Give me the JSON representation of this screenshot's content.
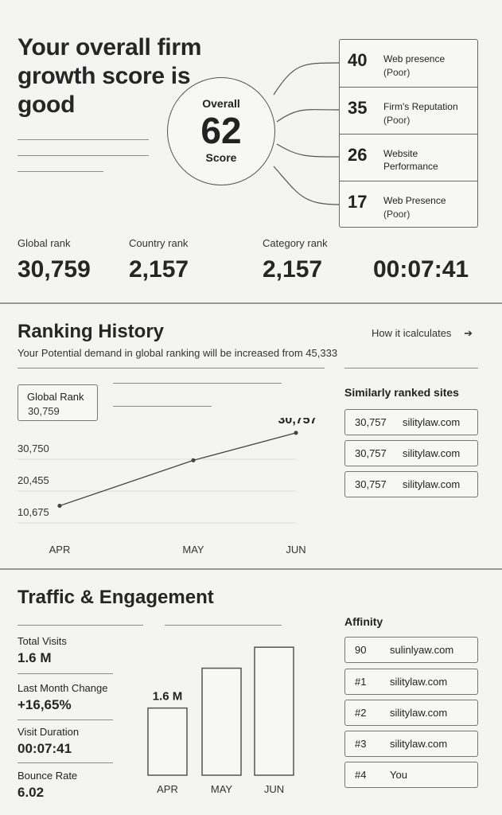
{
  "hero": {
    "title": "Your overall firm growth score is good",
    "score_label": "Overall",
    "score_value": "62",
    "score_sub": "Score",
    "metrics": [
      {
        "value": "40",
        "label": "Web presence",
        "status": "(Poor)"
      },
      {
        "value": "35",
        "label": "Firm's Reputation",
        "status": "(Poor)"
      },
      {
        "value": "26",
        "label": "Website Performance",
        "status": ""
      },
      {
        "value": "17",
        "label": "Web Presence",
        "status": "(Poor)"
      }
    ]
  },
  "ranks": {
    "global_label": "Global rank",
    "global_value": "30,759",
    "country_label": "Country rank",
    "country_value": "2,157",
    "category_label": "Category rank",
    "category_value": "2,157",
    "time_value": "00:07:41"
  },
  "ranking_history": {
    "title": "Ranking History",
    "how_link": "How it icalculates",
    "arrow_icon": "arrow-right-icon",
    "subtitle": "Your Potential demand in global ranking will be increased from 45,333",
    "card_title": "Global Rank",
    "card_value": "30,759",
    "similar_title": "Similarly ranked sites",
    "similar_sites": [
      {
        "rank": "30,757",
        "site": "silitylaw.com"
      },
      {
        "rank": "30,757",
        "site": "silitylaw.com"
      },
      {
        "rank": "30,757",
        "site": "silitylaw.com"
      }
    ]
  },
  "traffic": {
    "title": "Traffic & Engagement",
    "stats": [
      {
        "label": "Total Visits",
        "value": "1.6 M"
      },
      {
        "label": "Last Month Change",
        "value": "+16,65%"
      },
      {
        "label": "Visit Duration",
        "value": "00:07:41"
      },
      {
        "label": "Bounce Rate",
        "value": "6.02"
      }
    ],
    "affinity_title": "Affinity",
    "affinity": [
      {
        "rank": "90",
        "site": "sulinlyaw.com"
      },
      {
        "rank": "#1",
        "site": "silitylaw.com"
      },
      {
        "rank": "#2",
        "site": "silitylaw.com"
      },
      {
        "rank": "#3",
        "site": "silitylaw.com"
      },
      {
        "rank": "#4",
        "site": "You"
      }
    ]
  },
  "chart_data": [
    {
      "type": "line",
      "x": [
        "APR",
        "MAY",
        "JUN"
      ],
      "series": [
        {
          "values": [
            7500,
            22000,
            30757
          ]
        }
      ],
      "y_ticks": [
        "30,750",
        "20,455",
        "10,675"
      ],
      "point_label": "30,757",
      "ylim": [
        0,
        33000
      ],
      "grid": true
    },
    {
      "type": "bar",
      "categories": [
        "APR",
        "MAY",
        "JUN"
      ],
      "values": [
        1.6,
        2.55,
        3.05
      ],
      "data_label": "1.6 M",
      "ylim": [
        0,
        3.3
      ]
    }
  ]
}
